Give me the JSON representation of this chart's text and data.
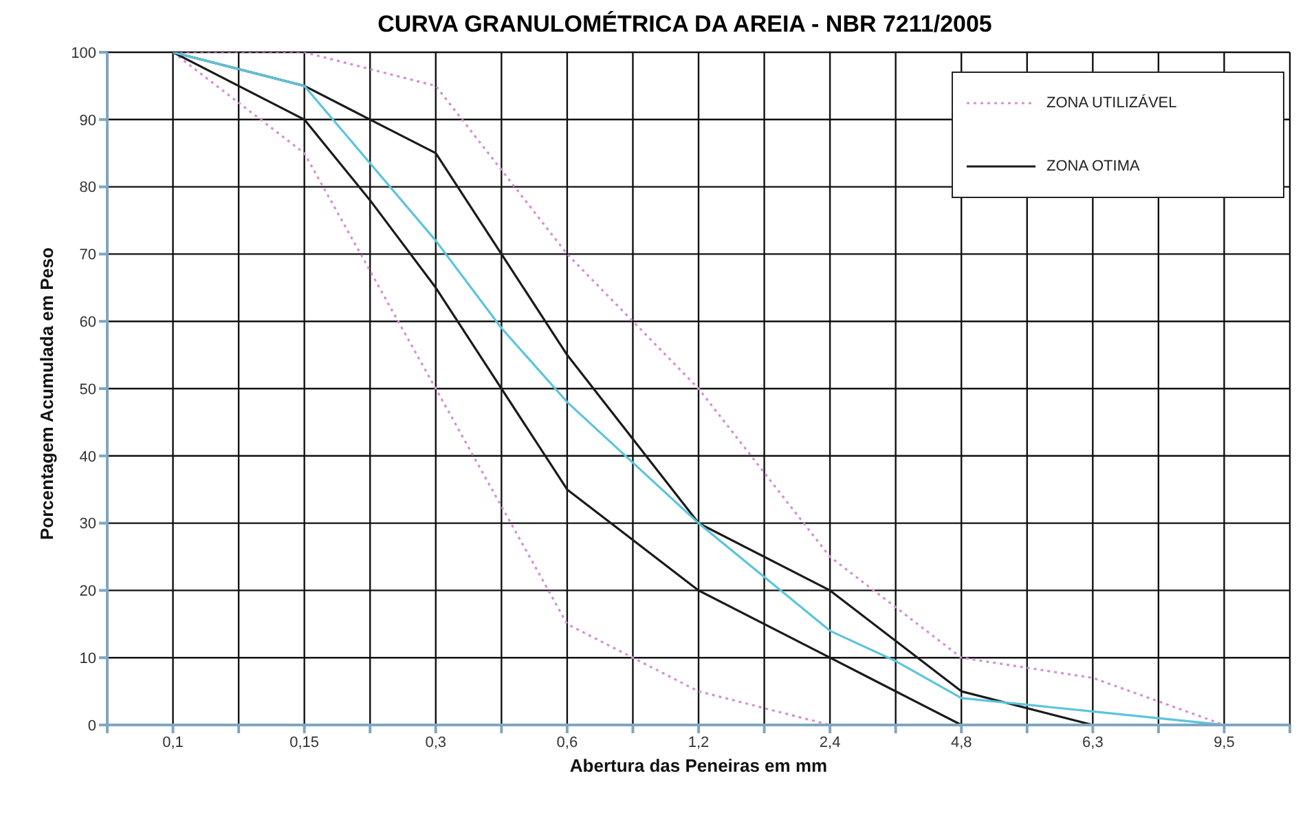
{
  "chart_data": {
    "type": "line",
    "title": "CURVA GRANULOMÉTRICA DA AREIA - NBR 7211/2005",
    "xlabel": "Abertura das Peneiras em mm",
    "ylabel": "Porcentagem Acumulada em Peso",
    "categories": [
      "0,1",
      null,
      "0,15",
      null,
      "0,3",
      null,
      "0,6",
      null,
      "1,2",
      null,
      "2,4",
      null,
      "4,8",
      null,
      "6,3",
      null,
      "9,5"
    ],
    "series": [
      {
        "name": "ZONA UTILIZÁVEL",
        "color": "#d68fd6",
        "line_style": "dotted",
        "values": [
          100,
          null,
          100,
          null,
          95,
          null,
          70,
          null,
          50,
          null,
          25,
          null,
          10,
          null,
          7,
          null,
          0
        ]
      },
      {
        "color": "#d68fd6",
        "line_style": "dotted",
        "values": [
          100,
          null,
          85,
          null,
          50,
          null,
          15,
          null,
          5,
          null,
          0,
          null,
          0,
          null,
          null,
          null,
          null
        ]
      },
      {
        "name": "ZONA OTIMA",
        "color": "#1a1a1a",
        "line_style": "solid",
        "values": [
          100,
          null,
          95,
          90,
          85,
          70,
          55,
          null,
          30,
          null,
          20,
          null,
          5,
          null,
          0,
          null,
          null
        ]
      },
      {
        "color": "#1a1a1a",
        "line_style": "solid",
        "values": [
          100,
          null,
          90,
          78,
          65,
          null,
          35,
          null,
          20,
          null,
          10,
          null,
          0,
          null,
          null,
          null,
          null
        ]
      },
      {
        "color": "#5bc4dc",
        "line_style": "solid",
        "values": [
          100,
          null,
          95,
          null,
          72,
          59,
          48,
          null,
          30,
          null,
          14,
          9.5,
          4,
          null,
          2,
          null,
          0
        ]
      }
    ],
    "ylim": [
      0,
      100
    ],
    "yticks": [
      0,
      10,
      20,
      30,
      40,
      50,
      60,
      70,
      80,
      90,
      100
    ],
    "grid": true,
    "legend": "top right",
    "marker": "none"
  }
}
